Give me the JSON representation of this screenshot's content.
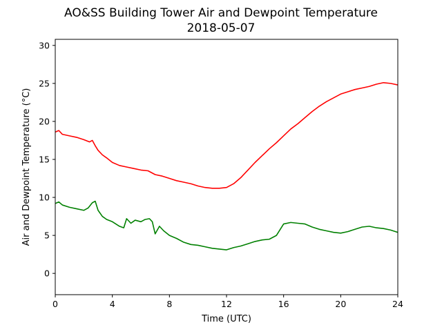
{
  "chart_data": {
    "type": "line",
    "title": "AO&SS Building Tower Air and Dewpoint Temperature",
    "subtitle": "2018-05-07",
    "xlabel": "Time (UTC)",
    "ylabel": "Air and Dewpoint Temperature (°C)",
    "xlim": [
      0,
      24
    ],
    "ylim": [
      -2.8,
      30.8
    ],
    "xticks": [
      0,
      4,
      8,
      12,
      16,
      20,
      24
    ],
    "yticks": [
      0,
      5,
      10,
      15,
      20,
      25,
      30
    ],
    "grid": false,
    "legend": "none",
    "series": [
      {
        "color": "#ff0000",
        "x": [
          0,
          0.25,
          0.5,
          0.75,
          1,
          1.5,
          2,
          2.4,
          2.6,
          2.8,
          3,
          3.3,
          3.6,
          4,
          4.5,
          5,
          5.5,
          6,
          6.5,
          7,
          7.5,
          8,
          8.5,
          9,
          9.5,
          10,
          10.5,
          11,
          11.5,
          12,
          12.5,
          13,
          13.5,
          14,
          14.5,
          15,
          15.5,
          16,
          16.5,
          17,
          17.5,
          18,
          18.5,
          19,
          19.5,
          20,
          20.5,
          21,
          21.5,
          22,
          22.5,
          23,
          23.5,
          24
        ],
        "y": [
          18.6,
          18.8,
          18.3,
          18.2,
          18.1,
          17.9,
          17.6,
          17.3,
          17.5,
          16.8,
          16.2,
          15.6,
          15.2,
          14.6,
          14.2,
          14.0,
          13.8,
          13.6,
          13.5,
          13.0,
          12.8,
          12.5,
          12.2,
          12.0,
          11.8,
          11.5,
          11.3,
          11.2,
          11.2,
          11.3,
          11.8,
          12.6,
          13.6,
          14.6,
          15.5,
          16.4,
          17.2,
          18.1,
          19.0,
          19.7,
          20.5,
          21.3,
          22.0,
          22.6,
          23.1,
          23.6,
          23.9,
          24.2,
          24.4,
          24.6,
          24.9,
          25.1,
          25.0,
          24.8
        ]
      },
      {
        "color": "#008000",
        "x": [
          0,
          0.25,
          0.5,
          1,
          1.5,
          2,
          2.3,
          2.6,
          2.8,
          3,
          3.3,
          3.6,
          4,
          4.5,
          4.8,
          5,
          5.3,
          5.6,
          6,
          6.3,
          6.6,
          6.8,
          7,
          7.3,
          7.6,
          8,
          8.5,
          9,
          9.5,
          10,
          10.5,
          11,
          11.5,
          12,
          12.5,
          13,
          13.5,
          14,
          14.5,
          15,
          15.5,
          16,
          16.5,
          17,
          17.5,
          18,
          18.5,
          19,
          19.5,
          20,
          20.5,
          21,
          21.5,
          22,
          22.5,
          23,
          23.5,
          24
        ],
        "y": [
          9.2,
          9.4,
          9.0,
          8.7,
          8.5,
          8.3,
          8.6,
          9.3,
          9.5,
          8.3,
          7.5,
          7.1,
          6.8,
          6.2,
          6.0,
          7.2,
          6.6,
          7.0,
          6.8,
          7.1,
          7.2,
          6.8,
          5.2,
          6.2,
          5.6,
          5.0,
          4.6,
          4.1,
          3.8,
          3.7,
          3.5,
          3.3,
          3.2,
          3.1,
          3.4,
          3.6,
          3.9,
          4.2,
          4.4,
          4.5,
          5.0,
          6.5,
          6.7,
          6.6,
          6.5,
          6.1,
          5.8,
          5.6,
          5.4,
          5.3,
          5.5,
          5.8,
          6.1,
          6.2,
          6.0,
          5.9,
          5.7,
          5.4
        ]
      }
    ]
  }
}
